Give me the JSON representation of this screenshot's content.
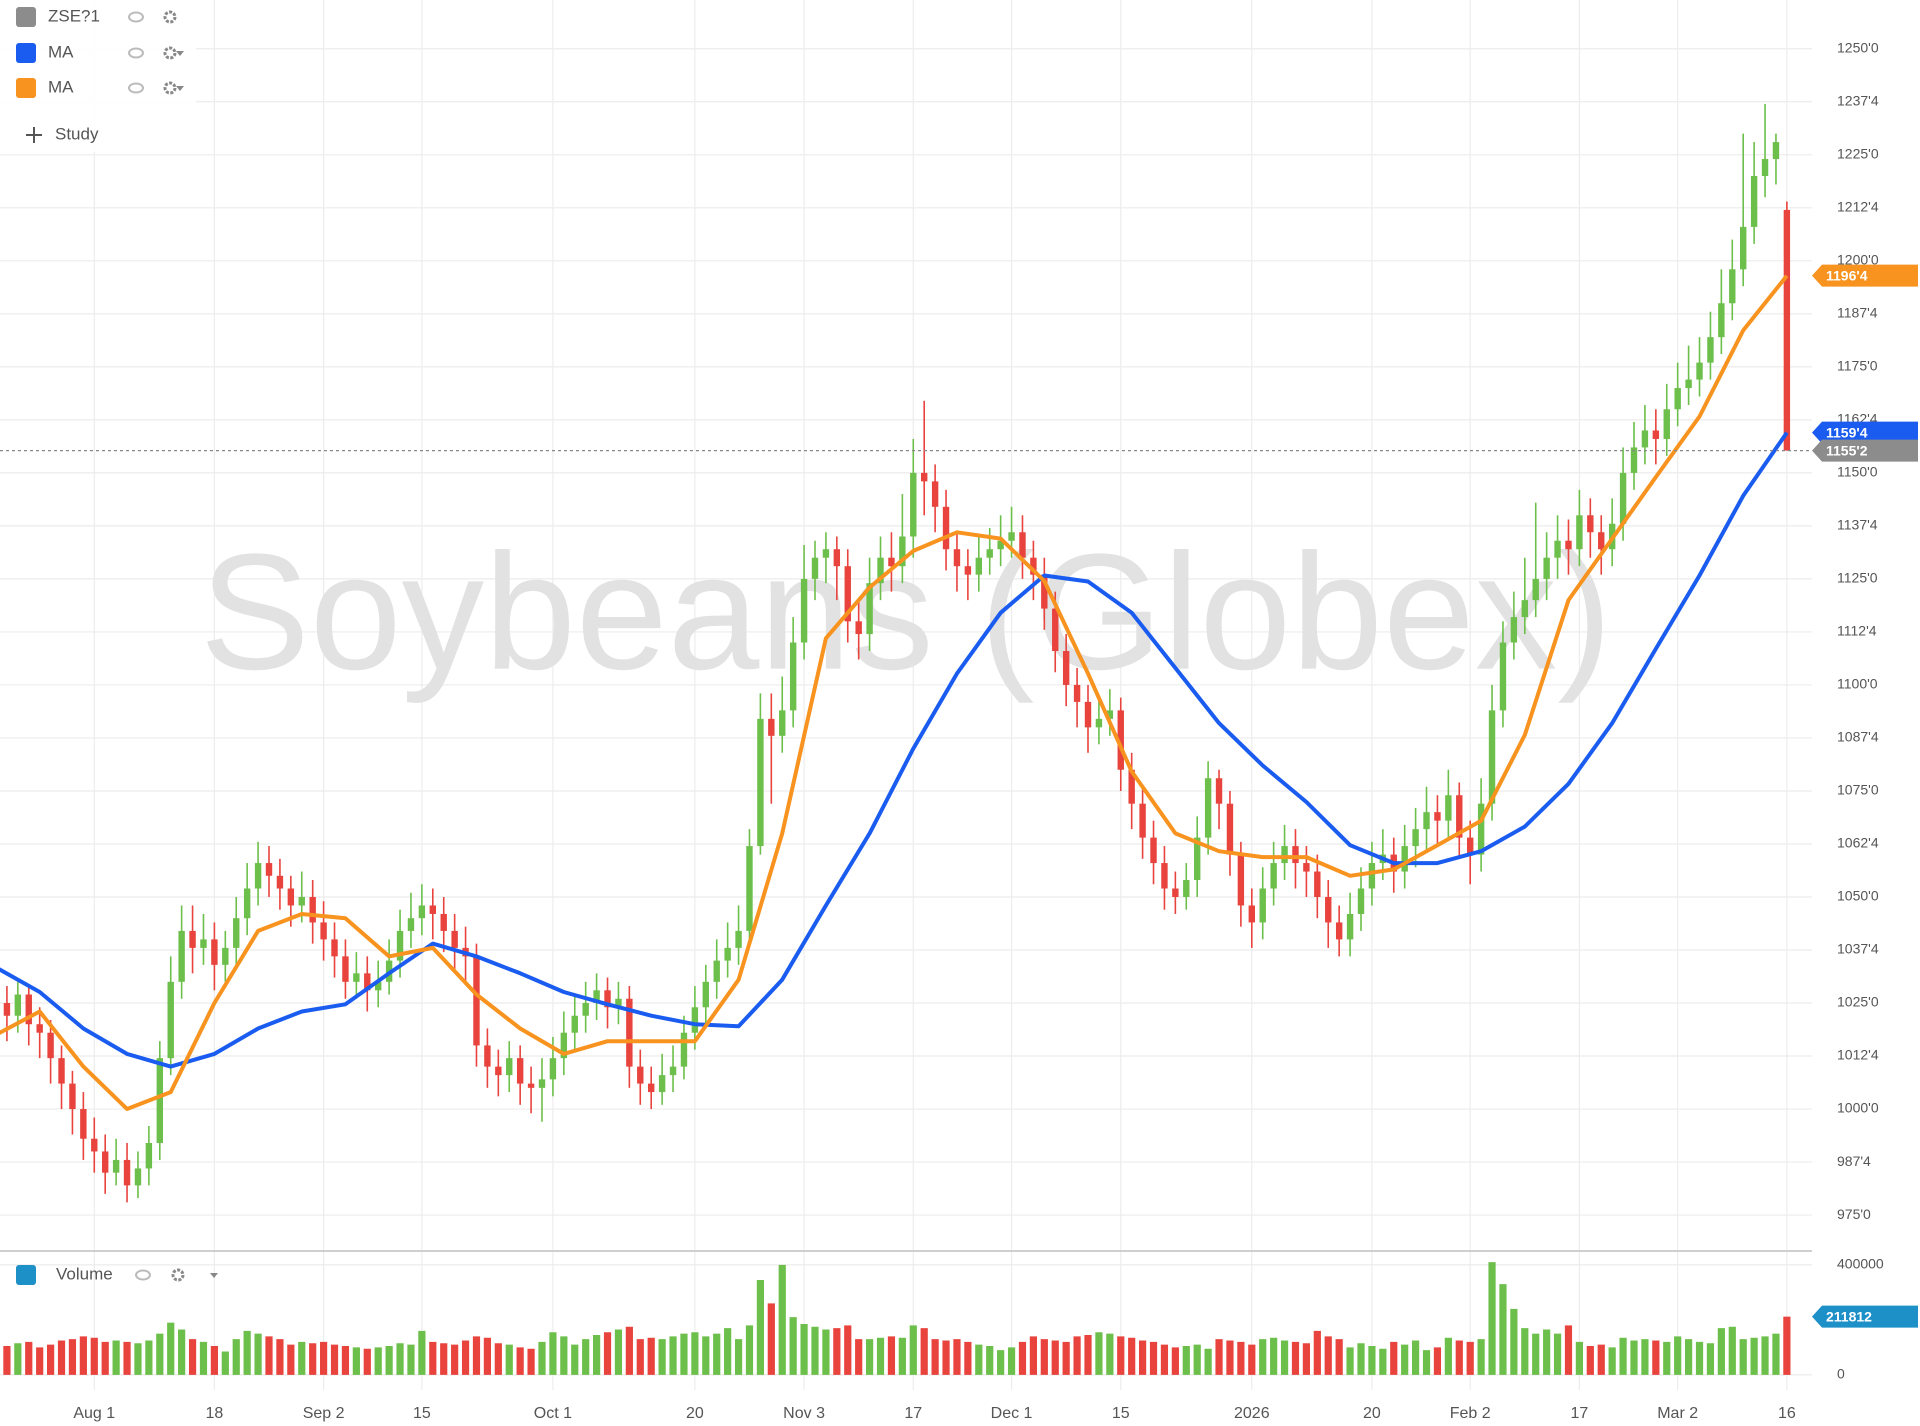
{
  "chart_data": {
    "type": "candlestick",
    "title": "Soybeans (Globex)",
    "symbol": "ZSE?1",
    "symbol_color": "#8c8c8c",
    "study_button": "Study",
    "up_color": "#6cbf4a",
    "down_color": "#e8433d",
    "grid": true,
    "categories": [
      null,
      null,
      null,
      null,
      null,
      null,
      null,
      null,
      null,
      "Aug 1",
      null,
      null,
      null,
      null,
      null,
      null,
      null,
      null,
      null,
      null,
      "18",
      null,
      null,
      null,
      null,
      null,
      null,
      null,
      null,
      null,
      "Sep 2",
      null,
      null,
      null,
      null,
      null,
      null,
      null,
      null,
      "15",
      null,
      null,
      null,
      null,
      null,
      null,
      null,
      null,
      null,
      null,
      null,
      "Oct 1",
      null,
      null,
      null,
      null,
      null,
      null,
      null,
      null,
      null,
      null,
      null,
      null,
      "20",
      null,
      null,
      null,
      null,
      null,
      null,
      null,
      null,
      null,
      "Nov 3",
      null,
      null,
      null,
      null,
      null,
      null,
      null,
      null,
      null,
      "17",
      null,
      null,
      null,
      null,
      null,
      null,
      null,
      null,
      "Dec 1",
      null,
      null,
      null,
      null,
      null,
      null,
      null,
      null,
      null,
      "15",
      null,
      null,
      null,
      null,
      null,
      null,
      null,
      null,
      null,
      null,
      null,
      "2026",
      null,
      null,
      null,
      null,
      null,
      null,
      null,
      null,
      null,
      null,
      "20",
      null,
      null,
      null,
      null,
      null,
      null,
      null,
      null,
      "Feb 2",
      null,
      null,
      null,
      null,
      null,
      null,
      null,
      null,
      null,
      "17",
      null,
      null,
      null,
      null,
      null,
      null,
      null,
      null,
      "Mar 2",
      null,
      null,
      null,
      null,
      null,
      null,
      null,
      null,
      null,
      "16"
    ],
    "open": [
      1028,
      1025,
      1022,
      1027,
      1020,
      1018,
      1012,
      1006,
      1000,
      993,
      990,
      985,
      988,
      982,
      986,
      992,
      1012,
      1030,
      1042,
      1038,
      1040,
      1034,
      1038,
      1045,
      1052,
      1058,
      1055,
      1052,
      1048,
      1050,
      1044,
      1040,
      1036,
      1030,
      1032,
      1028,
      1030,
      1035,
      1042,
      1045,
      1048,
      1046,
      1042,
      1038,
      1036,
      1015,
      1010,
      1008,
      1012,
      1006,
      1005,
      1007,
      1012,
      1018,
      1022,
      1025,
      1028,
      1024,
      1026,
      1010,
      1006,
      1004,
      1008,
      1010,
      1018,
      1024,
      1030,
      1035,
      1038,
      1042,
      1062,
      1092,
      1088,
      1094,
      1110,
      1125,
      1130,
      1132,
      1128,
      1115,
      1112,
      1124,
      1130,
      1128,
      1135,
      1150,
      1148,
      1142,
      1132,
      1128,
      1126,
      1130,
      1132,
      1134,
      1136,
      1130,
      1126,
      1118,
      1108,
      1100,
      1096,
      1090,
      1092,
      1094,
      1080,
      1072,
      1064,
      1058,
      1052,
      1050,
      1054,
      1064,
      1078,
      1072,
      1060,
      1048,
      1044,
      1052,
      1058,
      1062,
      1058,
      1056,
      1050,
      1044,
      1040,
      1046,
      1052,
      1058,
      1060,
      1056,
      1062,
      1066,
      1070,
      1068,
      1074,
      1064,
      1060,
      1072,
      1094,
      1110,
      1116,
      1120,
      1125,
      1130,
      1134,
      1132,
      1140,
      1136,
      1132,
      1138,
      1150,
      1156,
      1160,
      1158,
      1165,
      1170,
      1172,
      1176,
      1182,
      1190,
      1198,
      1208,
      1220,
      1224,
      1212
    ],
    "high": [
      1032,
      1029,
      1030,
      1029,
      1024,
      1021,
      1015,
      1009,
      1004,
      998,
      994,
      993,
      992,
      990,
      996,
      1016,
      1036,
      1048,
      1048,
      1046,
      1044,
      1042,
      1050,
      1058,
      1063,
      1062,
      1059,
      1055,
      1056,
      1054,
      1049,
      1044,
      1040,
      1037,
      1036,
      1035,
      1040,
      1047,
      1051,
      1053,
      1052,
      1050,
      1046,
      1043,
      1039,
      1019,
      1014,
      1016,
      1015,
      1010,
      1012,
      1017,
      1023,
      1027,
      1030,
      1032,
      1031,
      1030,
      1029,
      1014,
      1010,
      1013,
      1015,
      1022,
      1029,
      1034,
      1040,
      1044,
      1048,
      1066,
      1098,
      1098,
      1102,
      1116,
      1133,
      1134,
      1136,
      1135,
      1132,
      1120,
      1130,
      1135,
      1136,
      1145,
      1158,
      1167,
      1152,
      1146,
      1136,
      1132,
      1135,
      1137,
      1140,
      1142,
      1140,
      1134,
      1130,
      1122,
      1112,
      1104,
      1100,
      1097,
      1099,
      1097,
      1084,
      1076,
      1068,
      1062,
      1056,
      1058,
      1069,
      1082,
      1080,
      1075,
      1063,
      1052,
      1057,
      1063,
      1067,
      1066,
      1062,
      1060,
      1054,
      1048,
      1051,
      1057,
      1063,
      1066,
      1064,
      1067,
      1071,
      1076,
      1074,
      1080,
      1077,
      1068,
      1078,
      1100,
      1115,
      1122,
      1130,
      1143,
      1136,
      1140,
      1139,
      1146,
      1144,
      1140,
      1144,
      1156,
      1162,
      1166,
      1165,
      1171,
      1176,
      1180,
      1182,
      1188,
      1198,
      1205,
      1230,
      1228,
      1237,
      1230,
      1214
    ],
    "low": [
      1020,
      1016,
      1018,
      1015,
      1012,
      1006,
      1000,
      994,
      988,
      985,
      980,
      982,
      978,
      979,
      982,
      988,
      1008,
      1026,
      1032,
      1034,
      1028,
      1030,
      1034,
      1041,
      1048,
      1050,
      1047,
      1043,
      1044,
      1039,
      1035,
      1031,
      1026,
      1026,
      1023,
      1024,
      1027,
      1031,
      1038,
      1041,
      1040,
      1037,
      1033,
      1030,
      1010,
      1005,
      1003,
      1004,
      1001,
      999,
      997,
      1003,
      1008,
      1014,
      1018,
      1021,
      1019,
      1020,
      1005,
      1001,
      1000,
      1001,
      1004,
      1007,
      1014,
      1020,
      1026,
      1031,
      1034,
      1040,
      1060,
      1072,
      1084,
      1090,
      1106,
      1120,
      1124,
      1120,
      1110,
      1106,
      1108,
      1120,
      1122,
      1124,
      1130,
      1140,
      1136,
      1127,
      1122,
      1120,
      1122,
      1126,
      1128,
      1130,
      1125,
      1120,
      1113,
      1103,
      1095,
      1090,
      1084,
      1086,
      1088,
      1075,
      1066,
      1059,
      1053,
      1047,
      1046,
      1047,
      1050,
      1060,
      1066,
      1055,
      1043,
      1038,
      1040,
      1048,
      1054,
      1052,
      1050,
      1045,
      1038,
      1036,
      1036,
      1042,
      1048,
      1054,
      1051,
      1052,
      1057,
      1061,
      1062,
      1064,
      1059,
      1053,
      1056,
      1068,
      1090,
      1106,
      1112,
      1116,
      1120,
      1125,
      1126,
      1128,
      1130,
      1126,
      1128,
      1134,
      1146,
      1152,
      1152,
      1154,
      1161,
      1166,
      1168,
      1172,
      1178,
      1186,
      1194,
      1204,
      1215,
      1218,
      1155.25
    ],
    "close": [
      1025,
      1022,
      1027,
      1020,
      1018,
      1012,
      1006,
      1000,
      993,
      990,
      985,
      988,
      982,
      986,
      992,
      1012,
      1030,
      1042,
      1038,
      1040,
      1034,
      1038,
      1045,
      1052,
      1058,
      1055,
      1052,
      1048,
      1050,
      1044,
      1040,
      1036,
      1030,
      1032,
      1028,
      1030,
      1035,
      1042,
      1045,
      1048,
      1046,
      1042,
      1038,
      1036,
      1015,
      1010,
      1008,
      1012,
      1006,
      1005,
      1007,
      1012,
      1018,
      1022,
      1025,
      1028,
      1024,
      1026,
      1010,
      1006,
      1004,
      1008,
      1010,
      1018,
      1024,
      1030,
      1035,
      1038,
      1042,
      1062,
      1092,
      1088,
      1094,
      1110,
      1125,
      1130,
      1132,
      1128,
      1115,
      1112,
      1124,
      1130,
      1128,
      1135,
      1150,
      1148,
      1142,
      1132,
      1128,
      1126,
      1130,
      1132,
      1134,
      1136,
      1130,
      1126,
      1118,
      1108,
      1100,
      1096,
      1090,
      1092,
      1094,
      1080,
      1072,
      1064,
      1058,
      1052,
      1050,
      1054,
      1064,
      1078,
      1072,
      1060,
      1048,
      1044,
      1052,
      1058,
      1062,
      1058,
      1056,
      1050,
      1044,
      1040,
      1046,
      1052,
      1058,
      1060,
      1056,
      1062,
      1066,
      1070,
      1068,
      1074,
      1064,
      1060,
      1072,
      1094,
      1110,
      1116,
      1120,
      1125,
      1130,
      1134,
      1132,
      1140,
      1136,
      1132,
      1138,
      1150,
      1156,
      1160,
      1158,
      1165,
      1170,
      1172,
      1176,
      1182,
      1190,
      1198,
      1208,
      1220,
      1224,
      1228,
      1155.25
    ],
    "ylim": [
      967,
      1261.5
    ],
    "yticks": [
      {
        "value": 975,
        "label": "975'0"
      },
      {
        "value": 987.5,
        "label": "987'4"
      },
      {
        "value": 1000,
        "label": "1000'0"
      },
      {
        "value": 1012.5,
        "label": "1012'4"
      },
      {
        "value": 1025,
        "label": "1025'0"
      },
      {
        "value": 1037.5,
        "label": "1037'4"
      },
      {
        "value": 1050,
        "label": "1050'0"
      },
      {
        "value": 1062.5,
        "label": "1062'4"
      },
      {
        "value": 1075,
        "label": "1075'0"
      },
      {
        "value": 1087.5,
        "label": "1087'4"
      },
      {
        "value": 1100,
        "label": "1100'0"
      },
      {
        "value": 1112.5,
        "label": "1112'4"
      },
      {
        "value": 1125,
        "label": "1125'0"
      },
      {
        "value": 1137.5,
        "label": "1137'4"
      },
      {
        "value": 1150,
        "label": "1150'0"
      },
      {
        "value": 1162.5,
        "label": "1162'4"
      },
      {
        "value": 1175,
        "label": "1175'0"
      },
      {
        "value": 1187.5,
        "label": "1187'4"
      },
      {
        "value": 1200,
        "label": "1200'0"
      },
      {
        "value": 1212.5,
        "label": "1212'4"
      },
      {
        "value": 1225,
        "label": "1225'0"
      },
      {
        "value": 1237.5,
        "label": "1237'4"
      },
      {
        "value": 1250,
        "label": "1250'0"
      }
    ],
    "series": [
      {
        "name": "MA",
        "color": "#1a5cf0",
        "x": [
          0,
          4,
          8,
          12,
          16,
          20,
          24,
          28,
          32,
          36,
          40,
          44,
          48,
          52,
          56,
          60,
          64,
          68,
          72,
          76,
          80,
          84,
          88,
          92,
          96,
          100,
          104,
          108,
          112,
          116,
          120,
          124,
          128,
          132,
          136,
          140,
          144,
          148,
          152,
          156,
          160,
          164
        ],
        "values": [
          1033.4,
          1027.6,
          1019,
          1013,
          1010,
          1013,
          1019,
          1023,
          1024.7,
          1032,
          1039,
          1036,
          1032,
          1027.6,
          1024.7,
          1022,
          1020,
          1019.5,
          1030.5,
          1048,
          1065,
          1085,
          1102.7,
          1117,
          1125.8,
          1124.4,
          1117,
          1104,
          1091,
          1081,
          1072.4,
          1062.2,
          1058,
          1058,
          1060.8,
          1066.6,
          1076.7,
          1091,
          1108.5,
          1125.8,
          1144.6,
          1159.5
        ],
        "tag": {
          "value": 1159.5,
          "label": "1159'4"
        }
      },
      {
        "name": "MA",
        "color": "#f7931e",
        "x": [
          0,
          4,
          8,
          12,
          16,
          20,
          24,
          28,
          32,
          36,
          40,
          44,
          48,
          52,
          56,
          60,
          64,
          68,
          72,
          76,
          80,
          84,
          88,
          92,
          96,
          100,
          104,
          108,
          112,
          116,
          120,
          124,
          128,
          132,
          136,
          140,
          144,
          148,
          152,
          156,
          160,
          164
        ],
        "values": [
          1017.5,
          1023,
          1010,
          1000,
          1004,
          1025,
          1042,
          1046,
          1045,
          1036,
          1038,
          1027,
          1019,
          1013,
          1016,
          1016,
          1016,
          1030.5,
          1065,
          1111,
          1123,
          1131.6,
          1136,
          1134.5,
          1124.5,
          1102.7,
          1079.6,
          1065,
          1060.8,
          1059.4,
          1059.4,
          1055,
          1056.5,
          1062.2,
          1068,
          1088.2,
          1120,
          1134.5,
          1149,
          1163.3,
          1183.6,
          1196.5
        ],
        "tag": {
          "value": 1196.5,
          "label": "1196'4"
        }
      }
    ],
    "last_price": {
      "value": 1155.25,
      "label": "1155'2",
      "color": "#8c8c8c"
    },
    "volume": {
      "name": "Volume",
      "color": "#1e90c8",
      "ylim": [
        -55000,
        436000
      ],
      "yticks": [
        0,
        400000
      ],
      "values": [
        110000,
        105000,
        115000,
        120000,
        100000,
        110000,
        125000,
        130000,
        140000,
        135000,
        120000,
        125000,
        120000,
        115000,
        125000,
        150000,
        190000,
        165000,
        130000,
        120000,
        105000,
        85000,
        130000,
        160000,
        150000,
        140000,
        130000,
        110000,
        120000,
        115000,
        120000,
        110000,
        105000,
        100000,
        95000,
        100000,
        105000,
        115000,
        110000,
        160000,
        120000,
        115000,
        110000,
        125000,
        140000,
        135000,
        115000,
        110000,
        100000,
        95000,
        120000,
        155000,
        140000,
        110000,
        130000,
        145000,
        155000,
        165000,
        175000,
        130000,
        135000,
        130000,
        140000,
        150000,
        155000,
        140000,
        150000,
        170000,
        130000,
        180000,
        345000,
        260000,
        400000,
        210000,
        185000,
        175000,
        165000,
        170000,
        180000,
        130000,
        130000,
        135000,
        140000,
        135000,
        180000,
        170000,
        130000,
        125000,
        130000,
        120000,
        110000,
        105000,
        90000,
        100000,
        120000,
        140000,
        130000,
        125000,
        120000,
        140000,
        145000,
        155000,
        150000,
        140000,
        135000,
        125000,
        120000,
        110000,
        100000,
        105000,
        110000,
        95000,
        130000,
        125000,
        120000,
        110000,
        130000,
        135000,
        125000,
        120000,
        115000,
        160000,
        140000,
        130000,
        100000,
        115000,
        105000,
        95000,
        120000,
        110000,
        125000,
        90000,
        100000,
        135000,
        125000,
        120000,
        130000,
        410000,
        330000,
        240000,
        170000,
        150000,
        165000,
        150000,
        180000,
        120000,
        105000,
        110000,
        100000,
        135000,
        125000,
        130000,
        125000,
        120000,
        140000,
        130000,
        120000,
        115000,
        170000,
        175000,
        130000,
        135000,
        140000,
        150000,
        211812
      ]
    }
  }
}
